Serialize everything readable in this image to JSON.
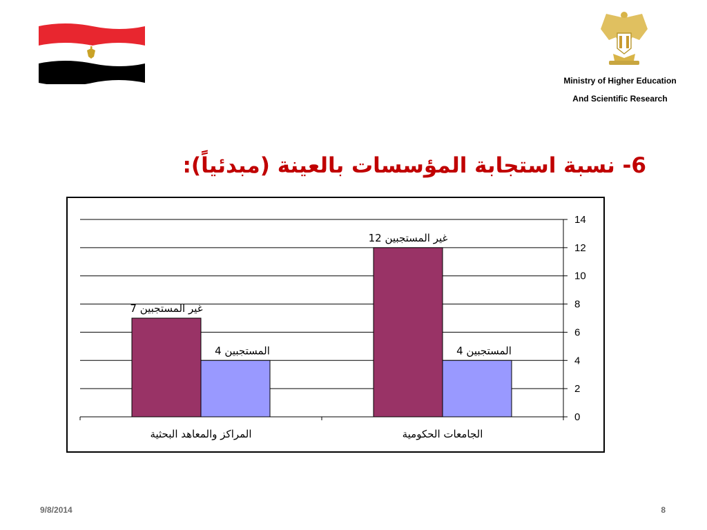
{
  "header": {
    "ministry_line1": "Ministry of Higher Education",
    "ministry_line2": "And Scientific Research"
  },
  "slide": {
    "title": "6- نسبة استجابة المؤسسات بالعينة (مبدئياً):",
    "date": "9/8/2014",
    "page_number": "8"
  },
  "colors": {
    "title": "#c00000",
    "non_responding": "#993366",
    "responding": "#9999ff",
    "flag_red": "#e8262f",
    "flag_black": "#000000",
    "flag_eagle": "#c9a227"
  },
  "icons": {
    "flag": "egypt-flag-icon",
    "crest": "eagle-crest-icon"
  },
  "chart_data": {
    "type": "bar",
    "categories": [
      "الجامعات الحكومية",
      "المراكز والمعاهد البحثية"
    ],
    "series": [
      {
        "name": "غير المستجبين",
        "values": [
          12,
          7
        ]
      },
      {
        "name": "المستجبين",
        "values": [
          4,
          4
        ]
      }
    ],
    "data_labels": [
      [
        "غير المستجبين 12",
        "غير المستجبين 7"
      ],
      [
        "المستجبين 4",
        "المستجبين 4"
      ]
    ],
    "ylim": [
      0,
      14
    ],
    "yticks": [
      0,
      2,
      4,
      6,
      8,
      10,
      12,
      14
    ],
    "y_axis_side": "right",
    "category_order": "right-to-left",
    "grid": true,
    "legend": "none"
  }
}
